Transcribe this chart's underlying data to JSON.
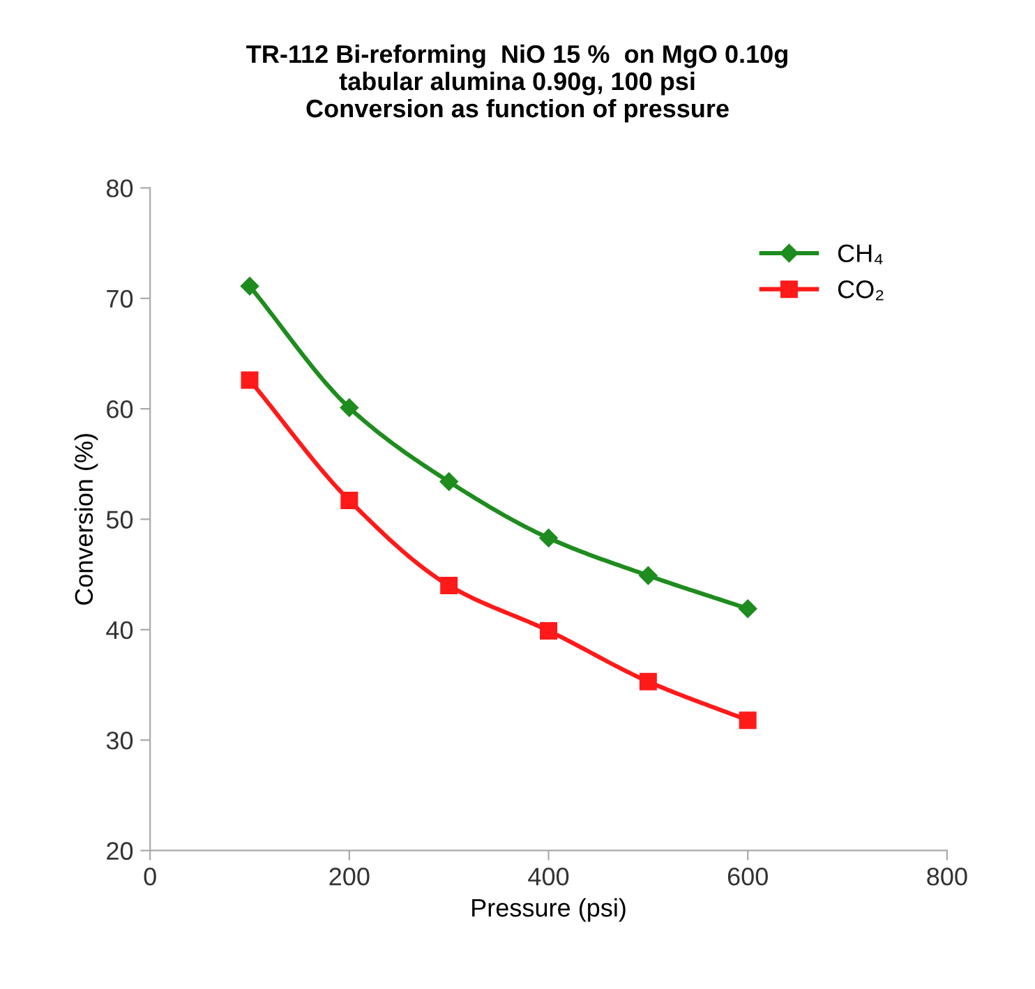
{
  "chart_data": {
    "type": "line",
    "title": "TR-112 Bi-reforming  NiO 15 %  on MgO 0.10g\ntabular alumina 0.90g, 100 psi\nConversion as function of pressure",
    "xlabel": "Pressure (psi)",
    "ylabel": "Conversion (%)",
    "x": [
      100,
      200,
      300,
      400,
      500,
      600
    ],
    "series": [
      {
        "name": "CH₄",
        "color": "#1e8c1e",
        "marker": "diamond",
        "values": [
          71.1,
          60.1,
          53.4,
          48.3,
          44.9,
          41.9
        ]
      },
      {
        "name": "CO₂",
        "color": "#ff1a1a",
        "marker": "square",
        "values": [
          62.6,
          51.7,
          44.0,
          39.9,
          35.3,
          31.8
        ]
      }
    ],
    "xlim": [
      0,
      800
    ],
    "xticks": [
      0,
      200,
      400,
      600,
      800
    ],
    "ylim": [
      20,
      80
    ],
    "yticks": [
      20,
      30,
      40,
      50,
      60,
      70,
      80
    ],
    "grid": false,
    "legend": "top right",
    "line_style": "solid"
  }
}
